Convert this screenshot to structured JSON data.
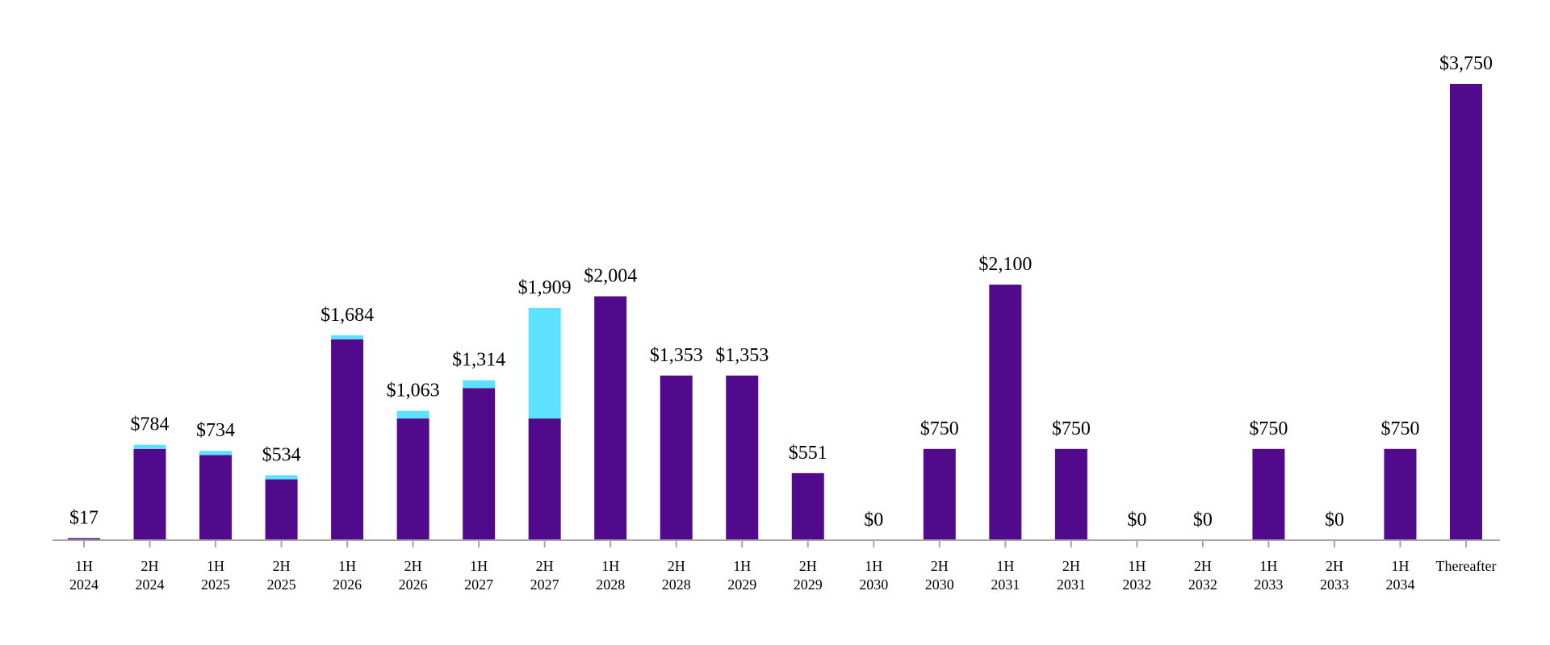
{
  "chart_data": {
    "type": "bar",
    "stacked": true,
    "categories": [
      "1H 2024",
      "2H 2024",
      "1H 2025",
      "2H 2025",
      "1H 2026",
      "2H 2026",
      "1H 2027",
      "2H 2027",
      "1H 2028",
      "2H 2028",
      "1H 2029",
      "2H 2029",
      "1H 2030",
      "2H 2030",
      "1H 2031",
      "2H 2031",
      "1H 2032",
      "2H 2032",
      "1H 2033",
      "2H 2033",
      "1H 2034",
      "Thereafter"
    ],
    "series": [
      {
        "color": "#510A8C",
        "values": [
          17,
          750,
          700,
          500,
          1650,
          1000,
          1250,
          1000,
          2004,
          1353,
          1353,
          551,
          0,
          750,
          2100,
          750,
          0,
          0,
          750,
          0,
          750,
          3750
        ]
      },
      {
        "color": "#5CE1FF",
        "values": [
          0,
          34,
          34,
          34,
          34,
          63,
          64,
          909,
          0,
          0,
          0,
          0,
          0,
          0,
          0,
          0,
          0,
          0,
          0,
          0,
          0,
          0
        ]
      }
    ],
    "data_labels": [
      "$17",
      "$784",
      "$734",
      "$534",
      "$1,684",
      "$1,063",
      "$1,314",
      "$1,909",
      "$2,004",
      "$1,353",
      "$1,353",
      "$551",
      "$0",
      "$750",
      "$2,100",
      "$750",
      "$0",
      "$0",
      "$750",
      "$0",
      "$750",
      "$3,750"
    ],
    "tick_labels": [
      [
        "1H",
        "2024"
      ],
      [
        "2H",
        "2024"
      ],
      [
        "1H",
        "2025"
      ],
      [
        "2H",
        "2025"
      ],
      [
        "1H",
        "2026"
      ],
      [
        "2H",
        "2026"
      ],
      [
        "1H",
        "2027"
      ],
      [
        "2H",
        "2027"
      ],
      [
        "1H",
        "2028"
      ],
      [
        "2H",
        "2028"
      ],
      [
        "1H",
        "2029"
      ],
      [
        "2H",
        "2029"
      ],
      [
        "1H",
        "2030"
      ],
      [
        "2H",
        "2030"
      ],
      [
        "1H",
        "2031"
      ],
      [
        "2H",
        "2031"
      ],
      [
        "1H",
        "2032"
      ],
      [
        "2H",
        "2032"
      ],
      [
        "1H",
        "2033"
      ],
      [
        "2H",
        "2033"
      ],
      [
        "1H",
        "2034"
      ],
      [
        "Thereafter"
      ]
    ],
    "ylim": [
      0,
      3750
    ],
    "grid": false,
    "legend": "none",
    "title": "",
    "xlabel": "",
    "ylabel": ""
  }
}
